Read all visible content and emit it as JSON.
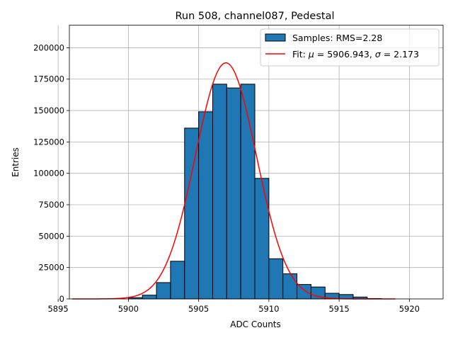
{
  "chart_data": {
    "type": "bar",
    "title": "Run 508, channel087, Pedestal",
    "xlabel": "ADC Counts",
    "ylabel": "Entries",
    "xlim": [
      5895.8,
      5922.4
    ],
    "ylim": [
      0,
      218000
    ],
    "xticks": [
      5895,
      5900,
      5905,
      5910,
      5915,
      5920
    ],
    "yticks": [
      0,
      25000,
      50000,
      75000,
      100000,
      125000,
      150000,
      175000,
      200000
    ],
    "grid": true,
    "bin_width": 1,
    "bins": [
      {
        "left": 5900,
        "value": 1000
      },
      {
        "left": 5901,
        "value": 3000
      },
      {
        "left": 5902,
        "value": 13000
      },
      {
        "left": 5903,
        "value": 30000
      },
      {
        "left": 5904,
        "value": 136000
      },
      {
        "left": 5905,
        "value": 149000
      },
      {
        "left": 5906,
        "value": 171000
      },
      {
        "left": 5907,
        "value": 168000
      },
      {
        "left": 5908,
        "value": 171000
      },
      {
        "left": 5909,
        "value": 96000
      },
      {
        "left": 5910,
        "value": 32000
      },
      {
        "left": 5911,
        "value": 20000
      },
      {
        "left": 5912,
        "value": 11500
      },
      {
        "left": 5913,
        "value": 9500
      },
      {
        "left": 5914,
        "value": 4500
      },
      {
        "left": 5915,
        "value": 3500
      },
      {
        "left": 5916,
        "value": 1500
      },
      {
        "left": 5917,
        "value": 300
      }
    ],
    "fit": {
      "mu": 5906.943,
      "sigma": 2.173,
      "amplitude": 188000,
      "x_start": 5896,
      "x_end": 5919
    },
    "legend": {
      "position": "top-right",
      "entries": [
        {
          "label": "Samples: RMS=2.28",
          "kind": "patch"
        },
        {
          "label_prefix": "Fit: ",
          "mu_symbol": "μ",
          "mu_text": " = 5906.943, ",
          "sigma_symbol": "σ",
          "sigma_text": " = 2.173",
          "kind": "line"
        }
      ]
    },
    "colors": {
      "bar_fill": "#1f77b4",
      "bar_edge": "#000000",
      "fit_line": "#ff0000",
      "grid": "#b0b0b0"
    }
  }
}
